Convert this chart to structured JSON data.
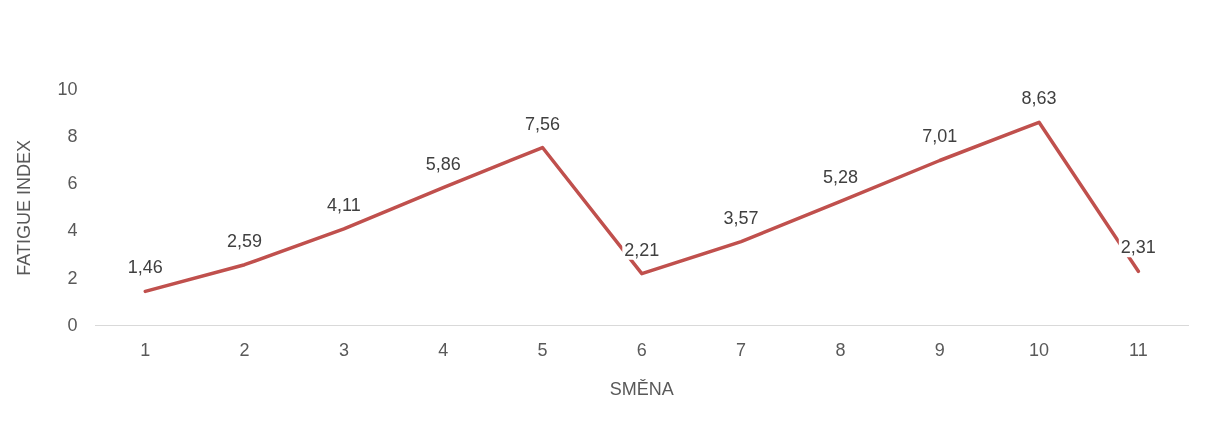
{
  "chart_data": {
    "type": "line",
    "xlabel": "SMĚNA",
    "ylabel": "FATIGUE INDEX",
    "categories": [
      "1",
      "2",
      "3",
      "4",
      "5",
      "6",
      "7",
      "8",
      "9",
      "10",
      "11"
    ],
    "series": [
      {
        "color": "#c0504d",
        "values": [
          1.46,
          2.59,
          4.11,
          5.86,
          7.56,
          2.21,
          3.57,
          5.28,
          7.01,
          8.63,
          2.31
        ],
        "value_labels": [
          "1,46",
          "2,59",
          "4,11",
          "5,86",
          "7,56",
          "2,21",
          "3,57",
          "5,28",
          "7,01",
          "8,63",
          "2,31"
        ]
      }
    ],
    "ylim": [
      0,
      10
    ],
    "yticks": [
      0,
      2,
      4,
      6,
      8,
      10
    ],
    "grid": false,
    "legend": false,
    "marker": "none",
    "line_style": "solid"
  }
}
